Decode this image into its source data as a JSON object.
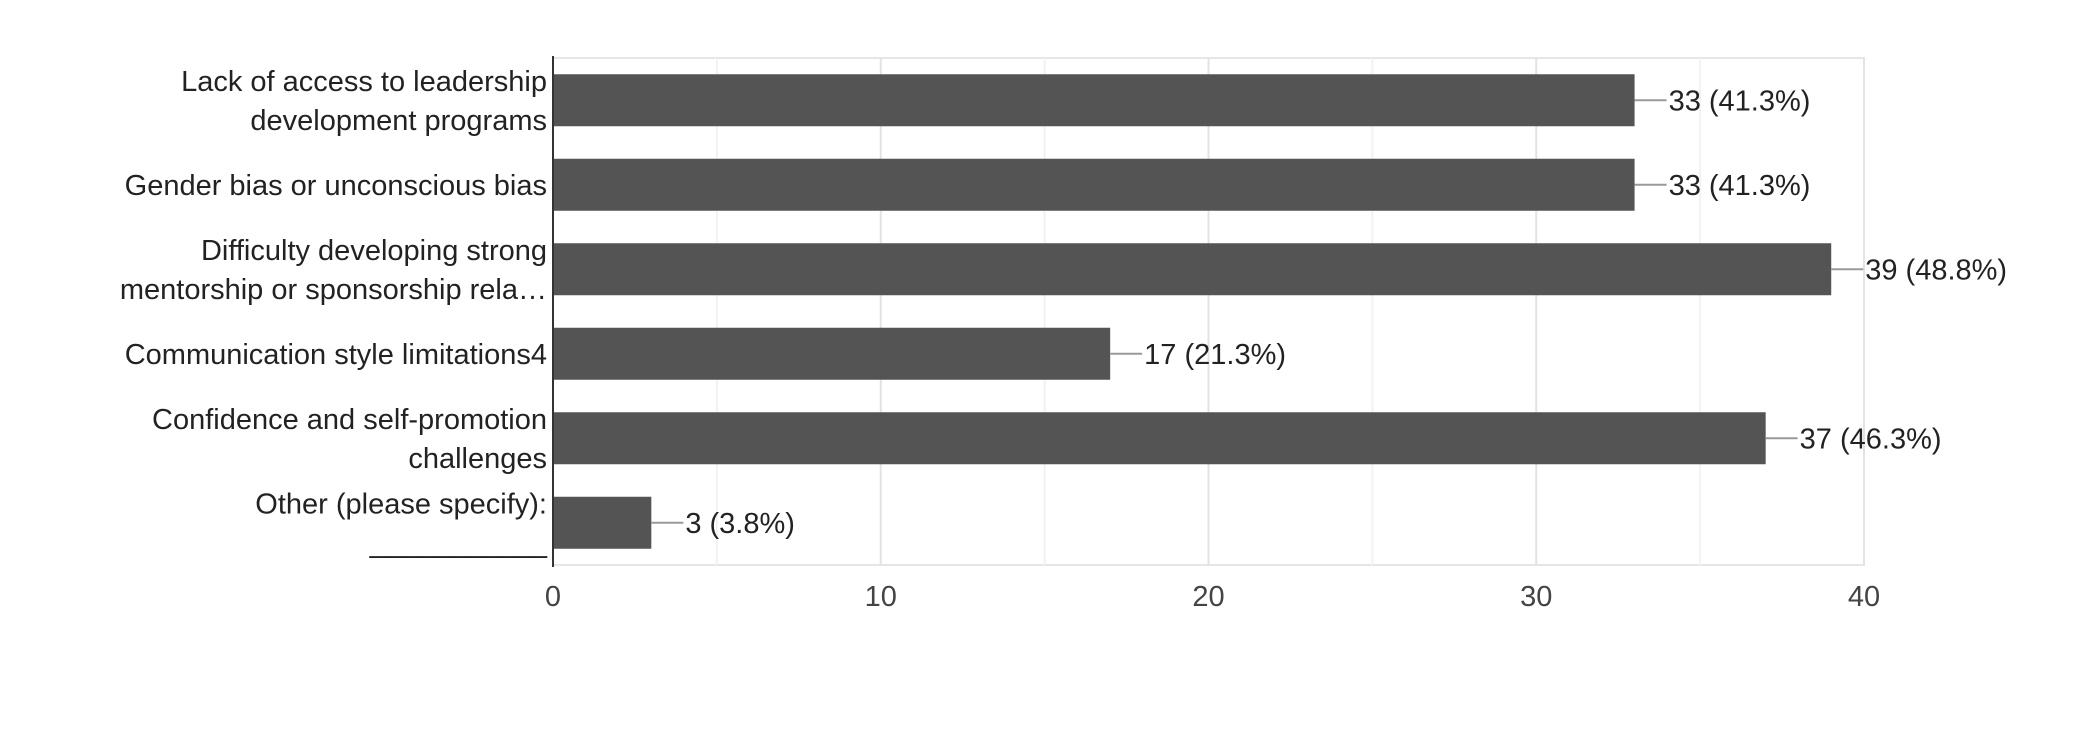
{
  "chart_data": {
    "type": "bar",
    "orientation": "horizontal",
    "categories": [
      [
        "Lack of access to leadership",
        "development programs"
      ],
      [
        "Gender bias or unconscious bias"
      ],
      [
        "Difficulty developing strong",
        "mentorship or sponsorship rela…"
      ],
      [
        "Communication style limitations4"
      ],
      [
        "Confidence and self-promotion",
        "challenges"
      ],
      [
        "Other (please specify):",
        "___________"
      ]
    ],
    "values": [
      33,
      33,
      39,
      17,
      37,
      3
    ],
    "data_labels": [
      "33 (41.3%)",
      "33 (41.3%)",
      "39 (48.8%)",
      "17 (21.3%)",
      "37 (46.3%)",
      "3 (3.8%)"
    ],
    "xlim": [
      0,
      40
    ],
    "xticks": [
      0,
      10,
      20,
      30,
      40
    ],
    "grid": true,
    "legend": "none",
    "bar_color": "#545454",
    "title": "",
    "xlabel": "",
    "ylabel": ""
  }
}
